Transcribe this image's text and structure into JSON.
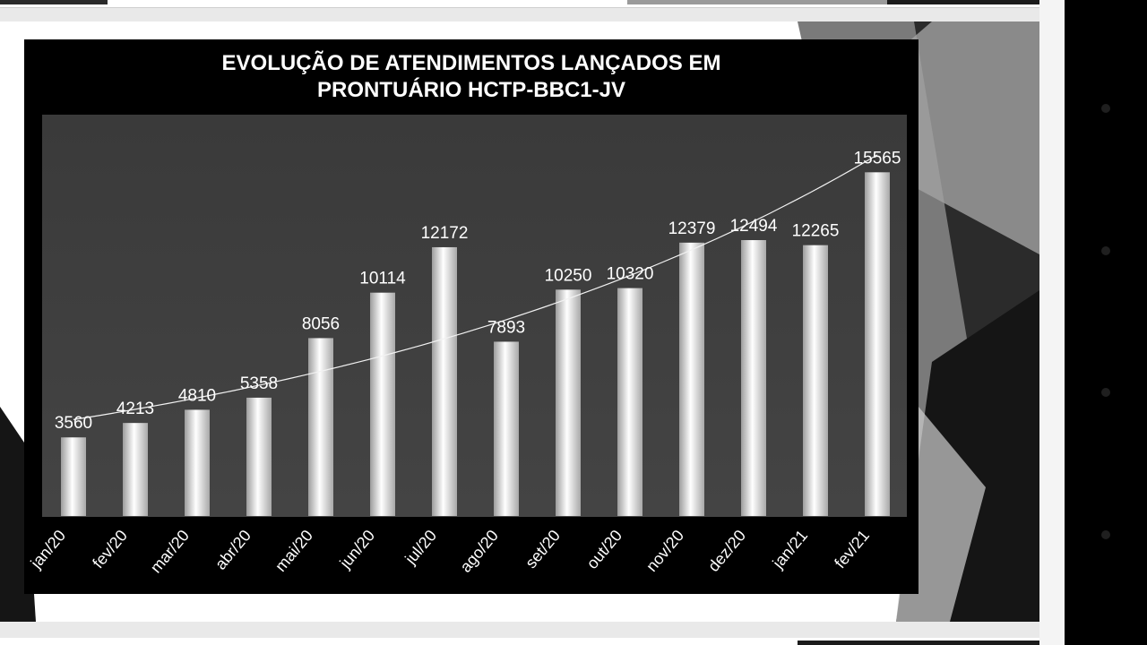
{
  "chart_data": {
    "type": "bar",
    "title": "EVOLUÇÃO DE ATENDIMENTOS LANÇADOS EM\nPRONTUÁRIO HCTP-BBC1-JV",
    "categories": [
      "jan/20",
      "fev/20",
      "mar/20",
      "abr/20",
      "mai/20",
      "jun/20",
      "jul/20",
      "ago/20",
      "set/20",
      "out/20",
      "nov/20",
      "dez/20",
      "jan/21",
      "fev/21"
    ],
    "values": [
      3560,
      4213,
      4810,
      5358,
      8056,
      10114,
      12172,
      7893,
      10250,
      10320,
      12379,
      12494,
      12265,
      15565
    ],
    "trendline": "exponential",
    "data_labels": true,
    "grid": false,
    "legend": "none",
    "colors": {
      "background": "#000000",
      "plot_area": "#3e3e3e",
      "bar": "#e6e6e6",
      "text": "#ffffff"
    }
  }
}
